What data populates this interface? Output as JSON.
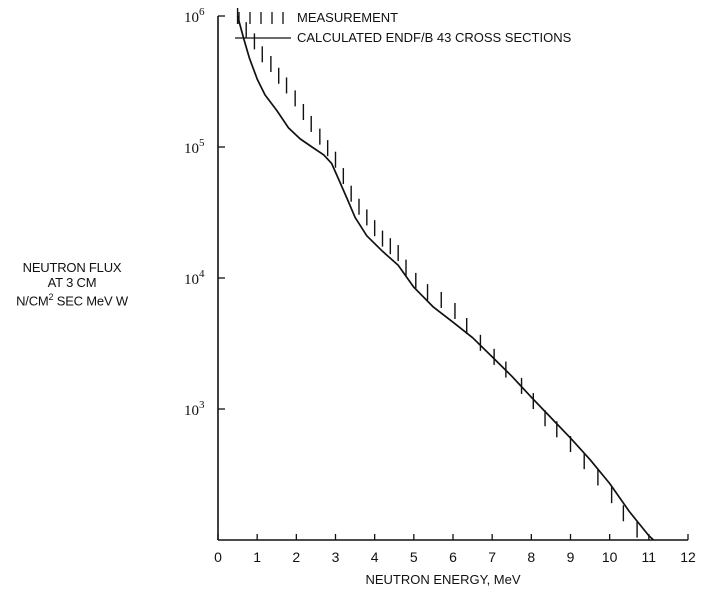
{
  "chart_data": {
    "type": "line",
    "ylabel": {
      "line1": "NEUTRON FLUX",
      "line2": "AT 3 CM",
      "line3_pre": "N/CM",
      "line3_sup": "2",
      "line3_post": " SEC MeV W"
    },
    "xlabel": "NEUTRON ENERGY, MeV",
    "xlim": [
      0,
      12
    ],
    "ylim": [
      100,
      1000000
    ],
    "yscale": "log",
    "grid": false,
    "legend_position": "top",
    "x_ticks": [
      0,
      1,
      2,
      3,
      4,
      5,
      6,
      7,
      8,
      9,
      10,
      11,
      12
    ],
    "y_tick_labels": [
      {
        "value": 1000,
        "base": "10",
        "exp": "3"
      },
      {
        "value": 10000,
        "base": "10",
        "exp": "4"
      },
      {
        "value": 100000,
        "base": "10",
        "exp": "5"
      },
      {
        "value": 1000000,
        "base": "10",
        "exp": "6"
      }
    ],
    "series": [
      {
        "name": "MEASUREMENT",
        "style": "vertical-dash",
        "x": [
          0.5,
          0.72,
          0.93,
          1.13,
          1.35,
          1.55,
          1.75,
          1.97,
          2.18,
          2.38,
          2.6,
          2.8,
          3.0,
          3.2,
          3.4,
          3.6,
          3.8,
          4.0,
          4.2,
          4.4,
          4.6,
          4.8,
          5.05,
          5.35,
          5.7,
          6.05,
          6.35,
          6.7,
          7.05,
          7.35,
          7.75,
          8.05,
          8.35,
          8.65,
          9.0,
          9.35,
          9.7,
          10.05,
          10.35,
          10.7
        ],
        "y": [
          1000000,
          780000,
          640000,
          510000,
          430000,
          350000,
          295000,
          235000,
          185000,
          150000,
          120000,
          98000,
          80000,
          60000,
          44000,
          35000,
          29000,
          24000,
          20000,
          17500,
          15500,
          12000,
          9500,
          7800,
          6800,
          5600,
          4300,
          3200,
          2500,
          2000,
          1500,
          1150,
          850,
          700,
          540,
          400,
          300,
          220,
          160,
          120
        ]
      },
      {
        "name": "CALCULATED ENDF/B 43 CROSS SECTIONS",
        "style": "solid",
        "x": [
          0.5,
          0.65,
          0.8,
          1.0,
          1.2,
          1.5,
          1.8,
          2.1,
          2.4,
          2.7,
          2.9,
          3.1,
          3.3,
          3.5,
          3.8,
          4.2,
          4.6,
          5.0,
          5.5,
          6.0,
          6.5,
          7.0,
          7.5,
          8.0,
          8.5,
          9.0,
          9.5,
          10.0,
          10.5,
          11.0,
          11.12
        ],
        "y": [
          1000000,
          680000,
          480000,
          330000,
          250000,
          190000,
          140000,
          115000,
          100000,
          87000,
          75000,
          55000,
          40000,
          29000,
          21000,
          16000,
          12500,
          8500,
          6000,
          4600,
          3500,
          2500,
          1780,
          1230,
          860,
          600,
          410,
          270,
          165,
          108,
          100
        ]
      }
    ]
  }
}
